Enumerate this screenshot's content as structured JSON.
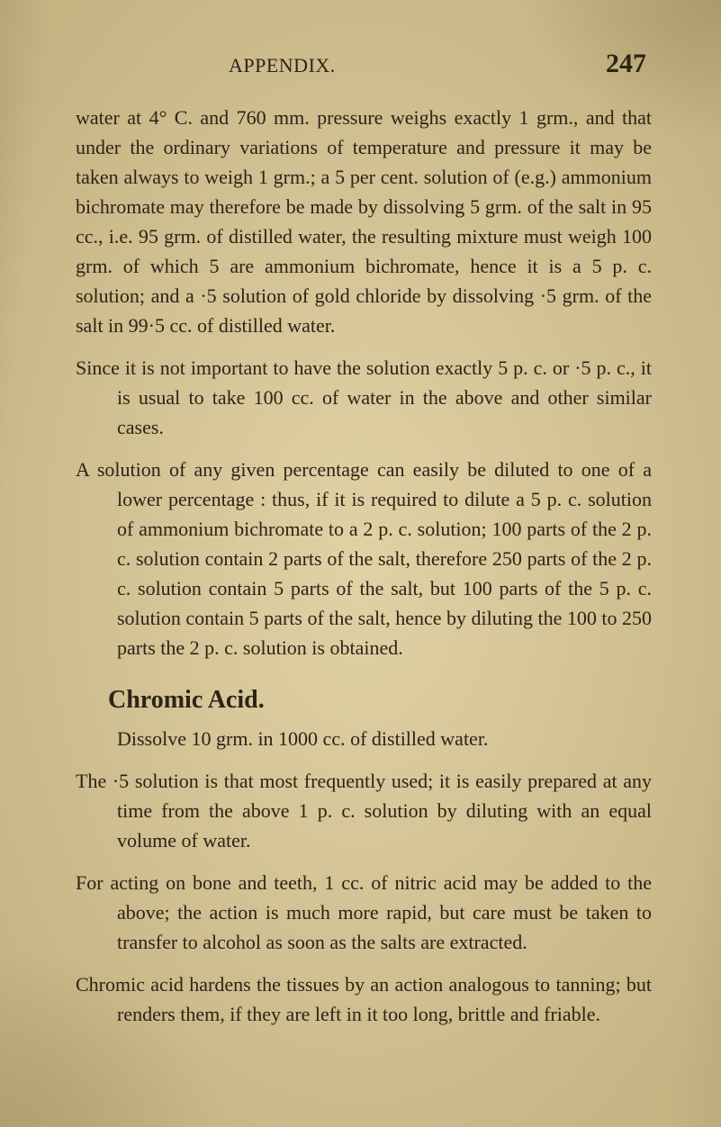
{
  "page": {
    "running_title": "APPENDIX.",
    "number": "247",
    "background_color": "#d1bf8f",
    "text_color": "#2c2416",
    "body_fontsize_pt": 16,
    "heading_fontsize_pt": 21
  },
  "paragraphs": {
    "p1": "water at 4° C. and 760 mm. pressure weighs exactly 1 grm., and that under the ordinary variations of temperature and pressure it may be taken always to weigh 1 grm.; a 5 per cent. solution of (e.g.) ammonium bichromate may therefore be made by dissolving 5 grm. of the salt in 95 cc., i.e. 95 grm. of distilled water, the resulting mixture must weigh 100 grm. of which 5 are ammonium bichromate, hence it is a 5 p. c. solution; and a ·5 solution of gold chloride by dissolving ·5 grm. of the salt in 99·5 cc. of distilled water.",
    "p2": "Since it is not important to have the solution exactly 5 p. c. or ·5 p. c., it is usual to take 100 cc. of water in the above and other similar cases.",
    "p3": "A solution of any given percentage can easily be diluted to one of a lower percentage : thus, if it is required to dilute a 5 p. c. solution of ammonium bichromate to a 2 p. c. solution; 100 parts of the 2 p. c. solution contain 2 parts of the salt, therefore 250 parts of the 2 p. c. solution contain 5 parts of the salt, but 100 parts of the 5 p. c. solution contain 5 parts of the salt, hence by diluting the 100 to 250 parts the 2 p. c. solution is obtained.",
    "h1": "Chromic Acid.",
    "p4": "Dissolve 10 grm. in 1000 cc. of distilled water.",
    "p5": "The ·5 solution is that most frequently used; it is easily prepared at any time from the above 1 p. c. solution by diluting with an equal volume of water.",
    "p6": "For acting on bone and teeth, 1 cc. of nitric acid may be added to the above; the action is much more rapid, but care must be taken to transfer to alcohol as soon as the salts are extracted.",
    "p7": "Chromic acid hardens the tissues by an action analogous to tanning; but renders them, if they are left in it too long, brittle and friable."
  }
}
